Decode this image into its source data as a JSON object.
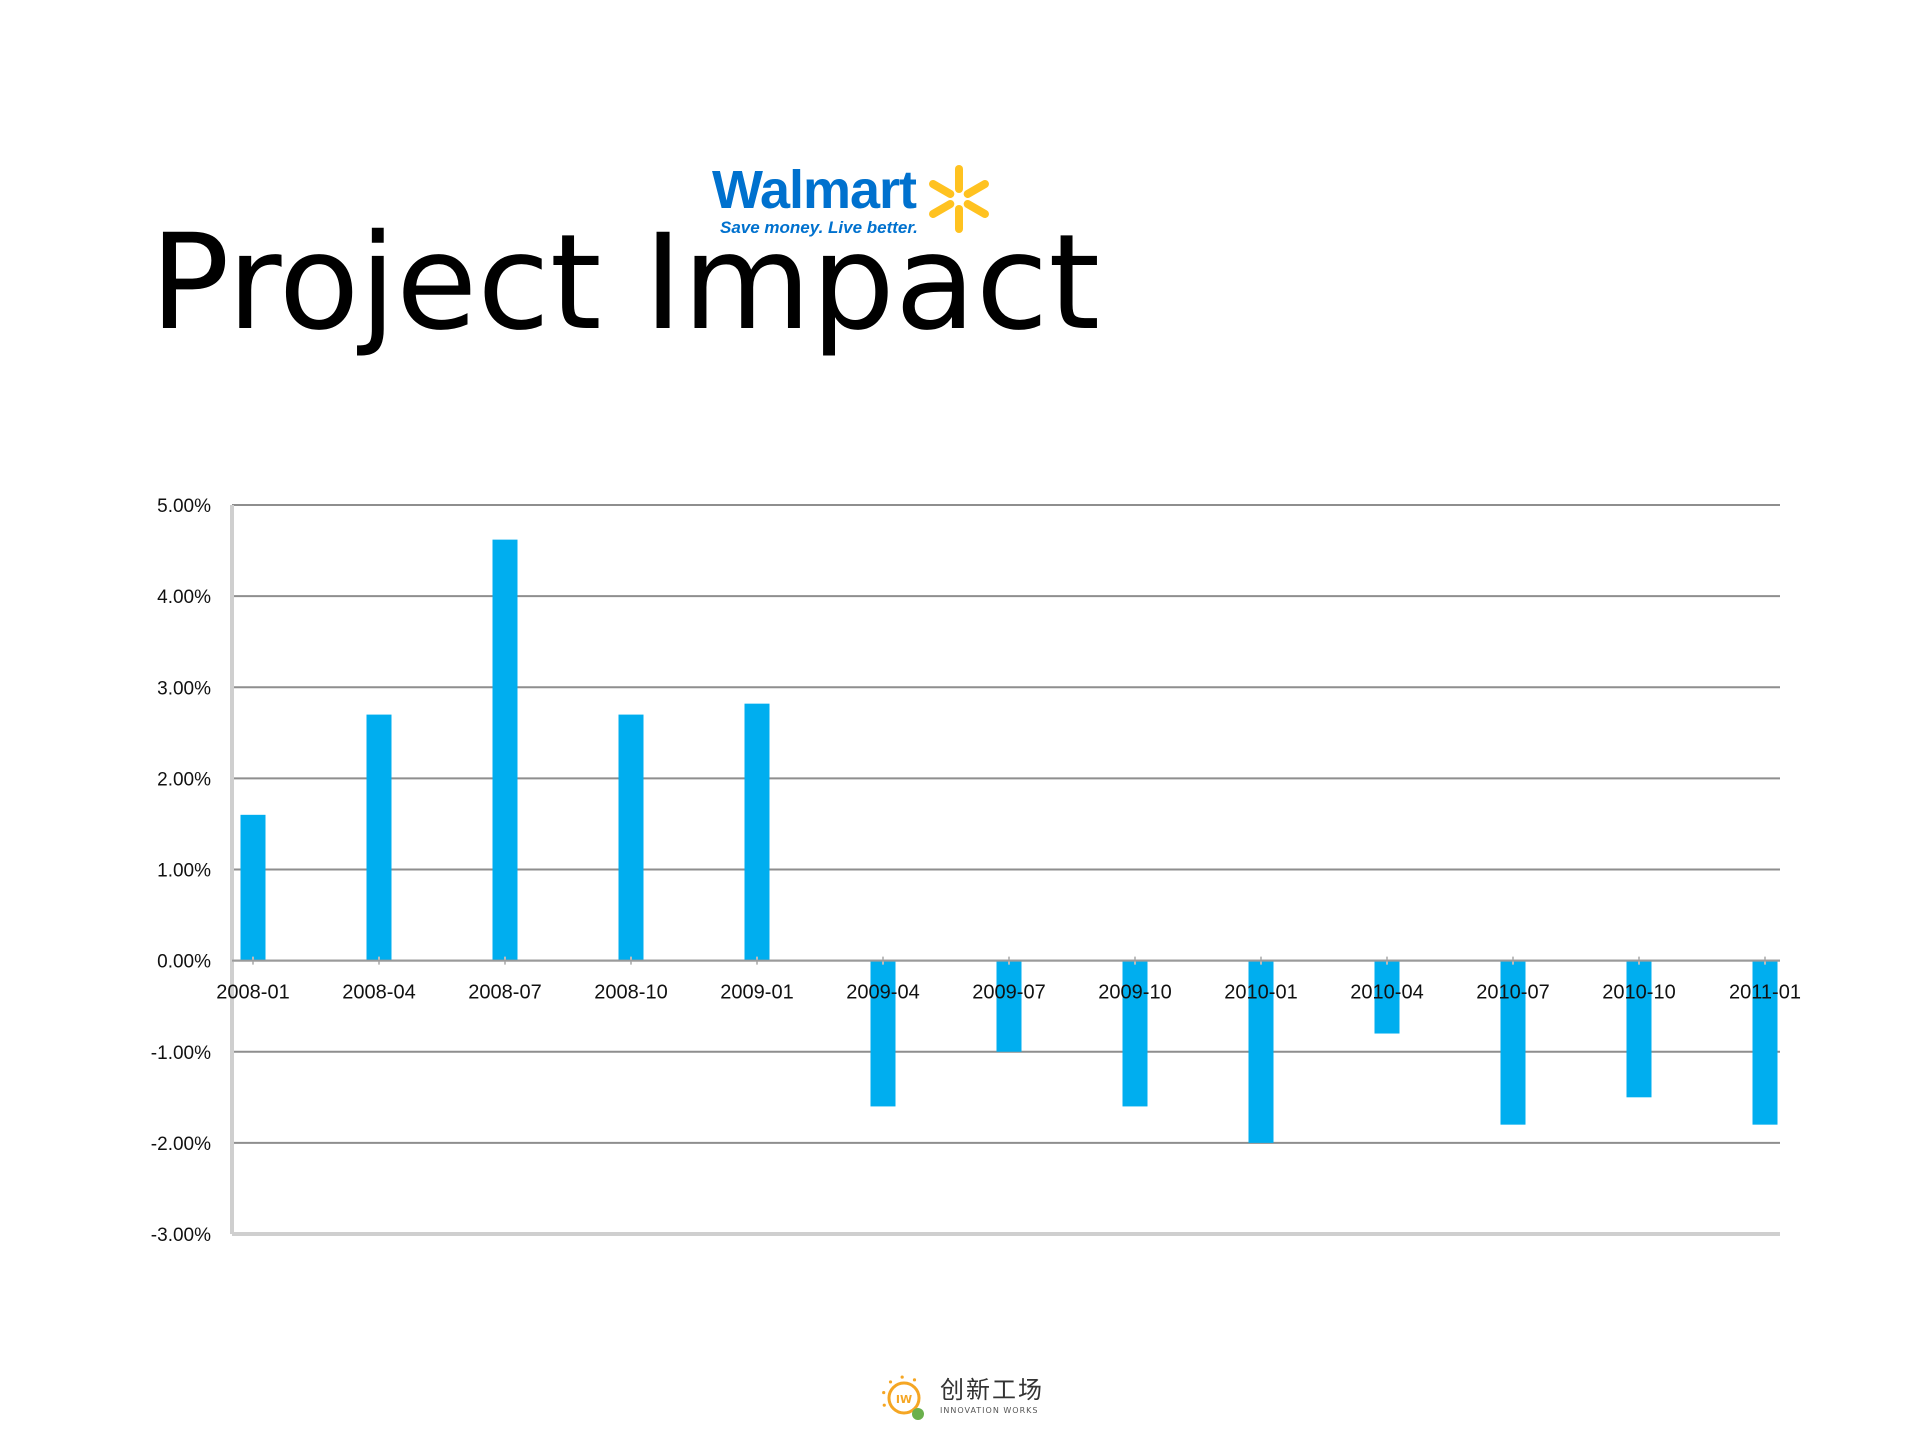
{
  "slide": {
    "title": "Project Impact"
  },
  "brand": {
    "name": "Walmart",
    "tagline": "Save money. Live better.",
    "word_color": "#0071ce",
    "spark_color": "#ffc220"
  },
  "footer": {
    "name_cn": "创新工场",
    "name_en": "INNOVATION WORKS",
    "mark_text": "IW",
    "accent_color": "#f5a623",
    "leaf_color": "#6ab04c"
  },
  "chart_data": {
    "type": "bar",
    "title": "",
    "xlabel": "",
    "ylabel": "",
    "categories": [
      "2008-01",
      "2008-04",
      "2008-07",
      "2008-10",
      "2009-01",
      "2009-04",
      "2009-07",
      "2009-10",
      "2010-01",
      "2010-04",
      "2010-07",
      "2010-10",
      "2011-01"
    ],
    "values": [
      1.6,
      2.7,
      4.62,
      2.7,
      2.82,
      -1.6,
      -1.0,
      -1.6,
      -2.0,
      -0.8,
      -1.8,
      -1.5,
      -1.8
    ],
    "ylim": [
      -3,
      5
    ],
    "yticks": [
      5,
      4,
      3,
      2,
      1,
      0,
      -1,
      -2,
      -3
    ],
    "ytick_labels": [
      "5.00%",
      "4.00%",
      "3.00%",
      "2.00%",
      "1.00%",
      "0.00%",
      "-1.00%",
      "-2.00%",
      "-3.00%"
    ],
    "grid": true,
    "legend": "none",
    "bar_color": "#00aeef",
    "grid_color": "#8e8e8e"
  }
}
